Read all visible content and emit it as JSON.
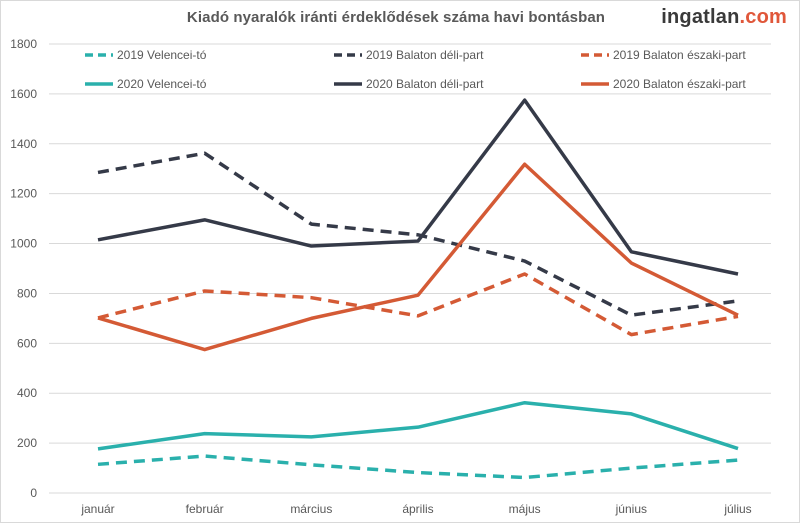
{
  "header": {
    "title": "Kiadó nyaralók iránti érdeklődések száma havi bontásban",
    "logo_main": "ingatlan",
    "logo_accent": ".com"
  },
  "colors": {
    "teal": "#2ab0ac",
    "dark": "#353a48",
    "orange": "#d45a35",
    "grid": "#d9d9d9",
    "text": "#595959"
  },
  "chart_data": {
    "type": "line",
    "title": "Kiadó nyaralók iránti érdeklődések száma havi bontásban",
    "categories": [
      "január",
      "február",
      "március",
      "április",
      "május",
      "június",
      "július"
    ],
    "ylim": [
      0,
      1800
    ],
    "yticks": [
      0,
      200,
      400,
      600,
      800,
      1000,
      1200,
      1400,
      1600,
      1800
    ],
    "grid": "horizontal",
    "legend_position": "top",
    "series": [
      {
        "name": "2019 Velencei-tó",
        "values": [
          115,
          148,
          113,
          82,
          62,
          100,
          132
        ],
        "color": "#2ab0ac",
        "style": "dashed"
      },
      {
        "name": "2019 Balaton déli-part",
        "values": [
          1285,
          1362,
          1078,
          1035,
          930,
          713,
          770
        ],
        "color": "#353a48",
        "style": "dashed"
      },
      {
        "name": "2019 Balaton északi-part",
        "values": [
          702,
          810,
          783,
          710,
          878,
          635,
          708
        ],
        "color": "#d45a35",
        "style": "dashed"
      },
      {
        "name": "2020 Velencei-tó",
        "values": [
          177,
          238,
          225,
          264,
          362,
          317,
          178
        ],
        "color": "#2ab0ac",
        "style": "solid"
      },
      {
        "name": "2020 Balaton déli-part",
        "values": [
          1015,
          1095,
          990,
          1010,
          1575,
          967,
          878
        ],
        "color": "#353a48",
        "style": "solid"
      },
      {
        "name": "2020 Balaton északi-part",
        "values": [
          702,
          575,
          700,
          793,
          1318,
          922,
          713
        ],
        "color": "#d45a35",
        "style": "solid"
      }
    ]
  }
}
